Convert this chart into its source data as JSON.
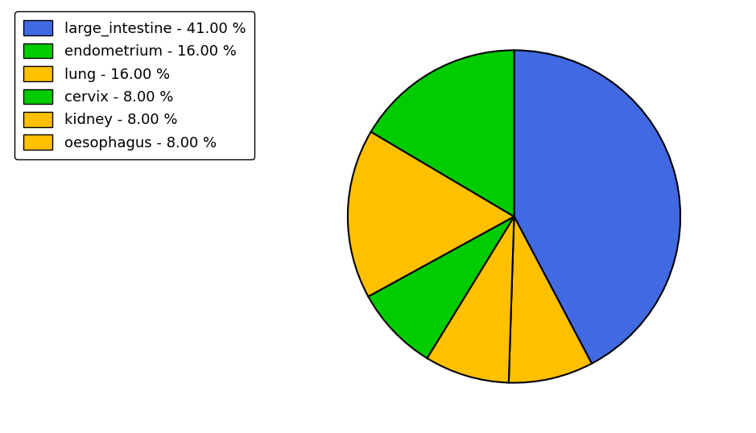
{
  "labels": [
    "large_intestine",
    "oesophagus",
    "kidney",
    "cervix",
    "lung",
    "endometrium"
  ],
  "sizes": [
    41.0,
    8.0,
    8.0,
    8.0,
    16.0,
    16.0
  ],
  "colors": [
    "#4169E1",
    "#FFC000",
    "#FFC000",
    "#00CC00",
    "#FFC000",
    "#00CC00"
  ],
  "legend_labels": [
    "large_intestine - 41.00 %",
    "endometrium - 16.00 %",
    "lung - 16.00 %",
    "cervix - 8.00 %",
    "kidney - 8.00 %",
    "oesophagus - 8.00 %"
  ],
  "legend_colors": [
    "#4169E1",
    "#00CC00",
    "#FFC000",
    "#00CC00",
    "#FFC000",
    "#FFC000"
  ],
  "startangle": 90,
  "background_color": "#ffffff",
  "edge_color": "#000000",
  "edge_linewidth": 1.5,
  "legend_fontsize": 13,
  "figsize": [
    9.39,
    5.38
  ],
  "dpi": 100
}
